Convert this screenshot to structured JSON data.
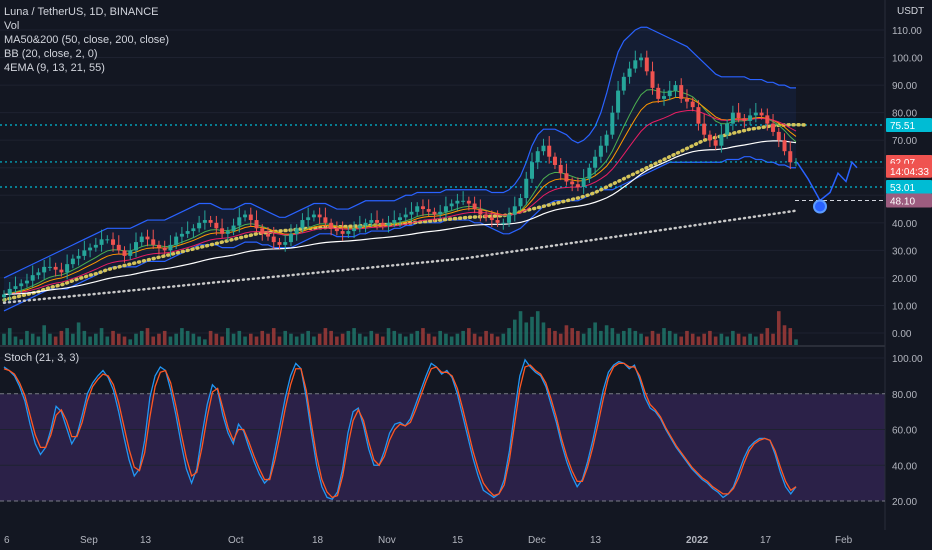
{
  "header": {
    "title": "Luna / TetherUS, 1D, BINANCE",
    "indicators": [
      "Vol",
      "MA50&200 (50, close, 200, close)",
      "BB (20, close, 2, 0)",
      "4EMA (9, 13, 21, 55)"
    ]
  },
  "price_axis": {
    "currency": "USDT",
    "ticks": [
      "110.00",
      "100.00",
      "90.00",
      "80.00",
      "70.00",
      "60.00",
      "50.00",
      "40.00",
      "30.00",
      "20.00",
      "10.00",
      "0.00"
    ],
    "tick_values": [
      110,
      100,
      90,
      80,
      70,
      60,
      50,
      40,
      30,
      20,
      10,
      0
    ]
  },
  "price_labels": [
    {
      "text": "75.51",
      "value": 75.51,
      "color": "#00bcd4"
    },
    {
      "text": "62.10",
      "value": 62.1,
      "color": "#00bcd4"
    },
    {
      "text": "62.07",
      "value": 62.07,
      "color": "#ef5350"
    },
    {
      "text": "14:04:33",
      "value": 58.9,
      "color": "#ef5350"
    },
    {
      "text": "53.01",
      "value": 53.01,
      "color": "#00bcd4"
    },
    {
      "text": "48.10",
      "value": 48.1,
      "color": "#9c5c7f"
    }
  ],
  "horizontal_levels": [
    75.51,
    62.1,
    53.01
  ],
  "stoch": {
    "title": "Stoch (21, 3, 3)",
    "ticks": [
      "100.00",
      "80.00",
      "60.00",
      "40.00",
      "20.00"
    ],
    "tick_values": [
      100,
      80,
      60,
      40,
      20
    ],
    "band": [
      20,
      80
    ],
    "k": [
      95,
      93,
      90,
      84,
      76,
      63,
      52,
      46,
      50,
      60,
      73,
      70,
      61,
      52,
      57,
      68,
      80,
      86,
      90,
      93,
      89,
      82,
      70,
      56,
      43,
      34,
      38,
      54,
      78,
      90,
      95,
      93,
      82,
      68,
      52,
      38,
      30,
      38,
      57,
      74,
      85,
      82,
      68,
      58,
      52,
      63,
      59,
      50,
      42,
      35,
      30,
      33,
      48,
      63,
      78,
      90,
      97,
      94,
      78,
      58,
      40,
      28,
      22,
      21,
      25,
      38,
      58,
      70,
      72,
      62,
      49,
      40,
      40,
      48,
      58,
      63,
      64,
      62,
      66,
      74,
      82,
      90,
      97,
      95,
      91,
      93,
      89,
      80,
      68,
      56,
      44,
      34,
      26,
      24,
      22,
      24,
      32,
      48,
      70,
      90,
      99,
      95,
      92,
      90,
      84,
      74,
      64,
      52,
      42,
      34,
      28,
      32,
      42,
      54,
      68,
      82,
      92,
      96,
      98,
      97,
      94,
      96,
      88,
      78,
      72,
      70,
      66,
      60,
      55,
      50,
      46,
      42,
      38,
      35,
      32,
      30,
      27,
      25,
      22,
      24,
      28,
      36,
      44,
      50,
      53,
      55,
      55,
      54,
      46,
      36,
      28,
      24,
      28
    ],
    "d": [
      94,
      93,
      91,
      86,
      79,
      68,
      57,
      50,
      50,
      57,
      68,
      71,
      65,
      56,
      56,
      64,
      76,
      84,
      88,
      91,
      90,
      85,
      75,
      62,
      49,
      39,
      37,
      47,
      67,
      84,
      92,
      93,
      86,
      73,
      58,
      44,
      34,
      36,
      50,
      67,
      81,
      83,
      72,
      61,
      54,
      60,
      60,
      53,
      45,
      38,
      32,
      32,
      43,
      57,
      72,
      85,
      94,
      94,
      82,
      63,
      45,
      32,
      25,
      22,
      23,
      34,
      51,
      65,
      71,
      65,
      53,
      43,
      40,
      45,
      54,
      60,
      63,
      62,
      64,
      71,
      79,
      87,
      94,
      95,
      92,
      92,
      90,
      83,
      72,
      60,
      48,
      38,
      30,
      26,
      23,
      24,
      29,
      43,
      63,
      83,
      95,
      96,
      93,
      91,
      86,
      77,
      67,
      55,
      45,
      37,
      31,
      31,
      39,
      50,
      63,
      77,
      89,
      95,
      97,
      97,
      95,
      95,
      90,
      81,
      74,
      71,
      67,
      61,
      56,
      51,
      47,
      43,
      39,
      36,
      33,
      31,
      28,
      26,
      24,
      24,
      27,
      33,
      41,
      48,
      52,
      54,
      55,
      54,
      48,
      39,
      31,
      26,
      28
    ]
  },
  "time_axis": {
    "labels": [
      "6",
      "Sep",
      "13",
      "Oct",
      "18",
      "Nov",
      "15",
      "Dec",
      "13",
      "2022",
      "17",
      "Feb"
    ],
    "bold": [
      "2022"
    ]
  },
  "chart_data": {
    "type": "candlestick",
    "title": "Luna / TetherUS, 1D, BINANCE",
    "currency": "USDT",
    "ylim": [
      0,
      110
    ],
    "stoch_ylim": [
      0,
      100
    ],
    "colors": {
      "up": "#26a69a",
      "down": "#ef5350",
      "ma50": "#d4c45a",
      "ma200": "#c8c8c8",
      "bb": "#2962ff",
      "projection": "#2962ff"
    },
    "series": [
      {
        "name": "close",
        "values": [
          14,
          16,
          17,
          18,
          19,
          21,
          22,
          24,
          24,
          23,
          22,
          25,
          27,
          28,
          30,
          31,
          32,
          34,
          34,
          32,
          30,
          28,
          30,
          33,
          35,
          34,
          32,
          31,
          30,
          32,
          35,
          36,
          37,
          38,
          40,
          41,
          40,
          38,
          36,
          37,
          39,
          42,
          43,
          41,
          38,
          36,
          35,
          33,
          32,
          33,
          36,
          38,
          41,
          42,
          43,
          42,
          40,
          38,
          37,
          36,
          37,
          38,
          39,
          40,
          41,
          40,
          39,
          40,
          41,
          42,
          43,
          44,
          46,
          45,
          44,
          43,
          44,
          46,
          47,
          48,
          48,
          47,
          45,
          43,
          42,
          41,
          40,
          40,
          43,
          46,
          49,
          56,
          62,
          66,
          68,
          64,
          61,
          58,
          55,
          54,
          53,
          56,
          60,
          64,
          68,
          72,
          80,
          88,
          93,
          96,
          99,
          100,
          95,
          89,
          85,
          86,
          88,
          90,
          85,
          84,
          82,
          76,
          72,
          70,
          68,
          72,
          76,
          80,
          78,
          77,
          79,
          80,
          79,
          76,
          73,
          70,
          66,
          62,
          62
        ]
      },
      {
        "name": "ma50",
        "values": [
          12,
          12.5,
          13,
          13.5,
          14,
          14.5,
          15,
          15.8,
          16.5,
          17,
          17.5,
          18.2,
          19,
          19.7,
          20.3,
          21,
          21.5,
          22.2,
          23,
          23.5,
          24,
          24.5,
          25,
          25.5,
          26,
          26.5,
          27,
          27.5,
          28,
          28.5,
          29,
          29.5,
          30,
          30.5,
          31,
          31.5,
          32,
          32.5,
          33,
          33.5,
          34,
          34.5,
          35,
          35.5,
          36,
          36.3,
          36.5,
          36.8,
          37,
          37.2,
          37.4,
          37.6,
          37.8,
          38,
          38.1,
          38.2,
          38.3,
          38.4,
          38.5,
          38.6,
          38.7,
          38.8,
          38.9,
          39,
          39.1,
          39.2,
          39.3,
          39.4,
          39.5,
          39.6,
          39.8,
          40,
          40.2,
          40.4,
          40.6,
          40.8,
          41,
          41.2,
          41.4,
          41.6,
          41.8,
          42,
          42.1,
          42.2,
          42.3,
          42.4,
          42.5,
          42.6,
          43,
          43.5,
          44,
          44.5,
          45,
          45.5,
          46,
          46.5,
          47,
          47.5,
          48,
          48.5,
          49,
          49.6,
          50.2,
          51,
          52,
          53,
          54,
          55,
          56,
          57,
          58,
          59,
          60,
          61,
          62,
          63,
          64,
          65,
          66,
          67,
          68,
          69,
          70,
          70.5,
          71,
          71.5,
          72,
          72.5,
          73,
          73.5,
          74,
          74.3,
          74.6,
          75,
          75.2,
          75.4,
          75.5,
          75.6,
          75.6,
          75.6,
          75.5
        ]
      },
      {
        "name": "ma200",
        "values": [
          11,
          11.2,
          11.4,
          11.6,
          11.8,
          12,
          12.2,
          12.4,
          12.6,
          12.8,
          13,
          13.2,
          13.4,
          13.6,
          13.8,
          14,
          14.2,
          14.4,
          14.6,
          14.8,
          15,
          15.2,
          15.4,
          15.6,
          15.8,
          16,
          16.2,
          16.4,
          16.6,
          16.8,
          17,
          17.2,
          17.4,
          17.6,
          17.8,
          18,
          18.2,
          18.4,
          18.6,
          18.8,
          19,
          19.2,
          19.4,
          19.6,
          19.8,
          20,
          20.2,
          20.4,
          20.6,
          20.8,
          21,
          21.2,
          21.4,
          21.6,
          21.8,
          22,
          22.2,
          22.4,
          22.6,
          22.8,
          23,
          23.2,
          23.4,
          23.6,
          23.8,
          24,
          24.2,
          24.4,
          24.6,
          24.8,
          25,
          25.2,
          25.4,
          25.6,
          25.8,
          26,
          26.2,
          26.4,
          26.6,
          26.8,
          27,
          27.3,
          27.6,
          27.9,
          28.2,
          28.5,
          28.8,
          29.1,
          29.4,
          29.7,
          30,
          30.3,
          30.6,
          30.9,
          31.2,
          31.5,
          31.8,
          32.1,
          32.4,
          32.7,
          33,
          33.3,
          33.6,
          33.9,
          34.2,
          34.5,
          34.8,
          35.1,
          35.4,
          35.7,
          36,
          36.3,
          36.6,
          36.9,
          37.2,
          37.5,
          37.8,
          38.1,
          38.4,
          38.7,
          39,
          39.3,
          39.6,
          39.9,
          40.2,
          40.5,
          40.8,
          41.1,
          41.4,
          41.7,
          42,
          42.3,
          42.6,
          42.9,
          43.2,
          43.5,
          43.8,
          44.1,
          44.4
        ]
      },
      {
        "name": "bb_upper",
        "values": [
          20,
          21,
          22,
          23,
          24,
          25,
          26,
          27,
          28,
          29,
          30,
          31,
          32,
          33,
          34,
          35,
          36,
          37,
          38,
          38,
          38,
          38,
          38,
          39,
          40,
          41,
          41,
          41,
          41,
          42,
          43,
          44,
          45,
          46,
          47,
          47,
          47,
          46,
          45,
          45,
          45,
          46,
          47,
          47,
          46,
          45,
          44,
          43,
          42,
          42,
          43,
          44,
          45,
          46,
          47,
          47,
          47,
          46,
          45,
          45,
          45,
          46,
          47,
          48,
          48,
          48,
          48,
          48,
          48,
          49,
          50,
          50,
          51,
          51,
          51,
          51,
          51,
          52,
          52,
          52,
          52,
          52,
          52,
          52,
          52,
          51,
          51,
          51,
          52,
          54,
          57,
          62,
          68,
          72,
          74,
          74,
          74,
          73,
          72,
          70,
          69,
          70,
          72,
          75,
          80,
          87,
          95,
          102,
          106,
          108,
          110,
          111,
          111,
          110,
          109,
          108,
          107,
          106,
          105,
          104,
          102,
          100,
          98,
          96,
          94,
          93,
          93,
          93,
          93,
          93,
          92,
          92,
          92,
          91,
          91,
          90,
          90,
          89,
          89
        ]
      },
      {
        "name": "bb_lower",
        "values": [
          8,
          9,
          10,
          11,
          12,
          13,
          14,
          15,
          16,
          16,
          16,
          16,
          17,
          18,
          19,
          20,
          21,
          22,
          23,
          24,
          24,
          24,
          24,
          24,
          25,
          26,
          26,
          26,
          26,
          27,
          28,
          29,
          30,
          31,
          32,
          32,
          32,
          32,
          31,
          31,
          31,
          32,
          33,
          33,
          33,
          32,
          32,
          31,
          31,
          31,
          31,
          32,
          33,
          34,
          35,
          36,
          36,
          36,
          35,
          35,
          35,
          35,
          36,
          36,
          37,
          37,
          37,
          37,
          38,
          38,
          39,
          39,
          40,
          40,
          40,
          40,
          40,
          41,
          41,
          41,
          41,
          41,
          40,
          40,
          39,
          38,
          37,
          36,
          36,
          37,
          38,
          40,
          42,
          44,
          46,
          47,
          48,
          48,
          48,
          48,
          48,
          49,
          50,
          51,
          52,
          52,
          52,
          53,
          54,
          55,
          56,
          57,
          58,
          59,
          60,
          61,
          62,
          62,
          62,
          62,
          62,
          62,
          62,
          62,
          62,
          62,
          63,
          63,
          63,
          64,
          64,
          63,
          63,
          62,
          62,
          61,
          61,
          60,
          60
        ]
      },
      {
        "name": "projection",
        "values": [
          62,
          56,
          48.1,
          51,
          58,
          55,
          62,
          60
        ]
      }
    ],
    "volume": [
      4,
      6,
      3,
      2,
      5,
      4,
      3,
      7,
      4,
      3,
      5,
      6,
      4,
      8,
      5,
      3,
      4,
      6,
      3,
      5,
      4,
      3,
      2,
      4,
      5,
      6,
      3,
      4,
      5,
      3,
      4,
      6,
      5,
      4,
      3,
      2,
      5,
      4,
      3,
      6,
      4,
      5,
      3,
      4,
      3,
      5,
      4,
      6,
      3,
      5,
      4,
      3,
      4,
      5,
      3,
      4,
      6,
      5,
      3,
      4,
      5,
      6,
      4,
      3,
      5,
      4,
      3,
      6,
      5,
      4,
      3,
      4,
      5,
      6,
      4,
      3,
      5,
      4,
      3,
      4,
      5,
      6,
      4,
      3,
      5,
      4,
      3,
      4,
      6,
      9,
      12,
      8,
      10,
      12,
      8,
      6,
      5,
      4,
      7,
      6,
      5,
      4,
      6,
      8,
      5,
      7,
      6,
      4,
      5,
      6,
      5,
      4,
      3,
      5,
      4,
      6,
      5,
      4,
      3,
      5,
      4,
      3,
      4,
      5,
      3,
      4,
      3,
      5,
      4,
      3,
      4,
      3,
      4,
      6,
      4,
      12,
      7,
      6,
      2
    ]
  }
}
